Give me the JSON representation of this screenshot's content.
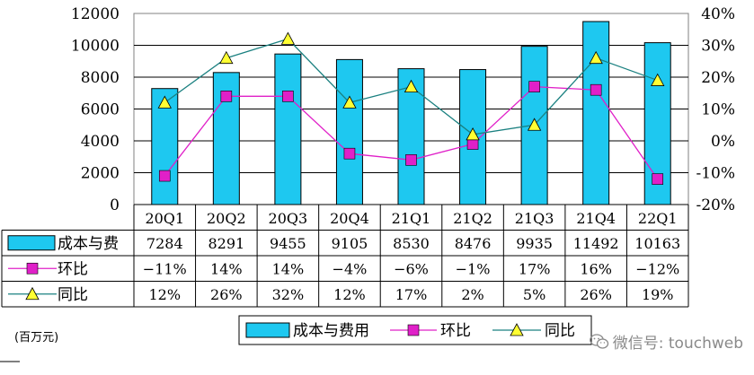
{
  "chart_data": {
    "type": "bar",
    "categories": [
      "20Q1",
      "20Q2",
      "20Q3",
      "20Q4",
      "21Q1",
      "21Q2",
      "21Q3",
      "21Q4",
      "22Q1"
    ],
    "left_axis": {
      "ticks": [
        "0",
        "2000",
        "4000",
        "6000",
        "8000",
        "10000",
        "12000"
      ],
      "min": 0,
      "max": 12000
    },
    "right_axis": {
      "ticks": [
        "-20%",
        "-10%",
        "0%",
        "10%",
        "20%",
        "30%",
        "40%"
      ],
      "min": -20,
      "max": 40
    },
    "series": [
      {
        "name": "成本与费",
        "legend_name": "成本与费用",
        "kind": "bar",
        "axis": "left",
        "color": "#1ec8f0",
        "values": [
          7284,
          8291,
          9455,
          9105,
          8530,
          8476,
          9935,
          11492,
          10163
        ],
        "labels": [
          "7284",
          "8291",
          "9455",
          "9105",
          "8530",
          "8476",
          "9935",
          "11492",
          "10163"
        ]
      },
      {
        "name": "环比",
        "legend_name": "环比",
        "kind": "line",
        "marker": "square",
        "axis": "right",
        "color": "#e020c8",
        "values": [
          -11,
          14,
          14,
          -4,
          -6,
          -1,
          17,
          16,
          -12
        ],
        "labels": [
          "−11%",
          "14%",
          "14%",
          "−4%",
          "−6%",
          "−1%",
          "17%",
          "16%",
          "−12%"
        ]
      },
      {
        "name": "同比",
        "legend_name": "同比",
        "kind": "line",
        "marker": "triangle",
        "axis": "right",
        "color": "#1a8080",
        "marker_color": "#ffff33",
        "values": [
          12,
          26,
          32,
          12,
          17,
          2,
          5,
          26,
          19
        ],
        "labels": [
          "12%",
          "26%",
          "32%",
          "12%",
          "17%",
          "2%",
          "5%",
          "26%",
          "19%"
        ]
      }
    ]
  },
  "unit_label": "(百万元)",
  "watermark": "微信号: touchweb",
  "watermark_icon": "wechat-icon"
}
